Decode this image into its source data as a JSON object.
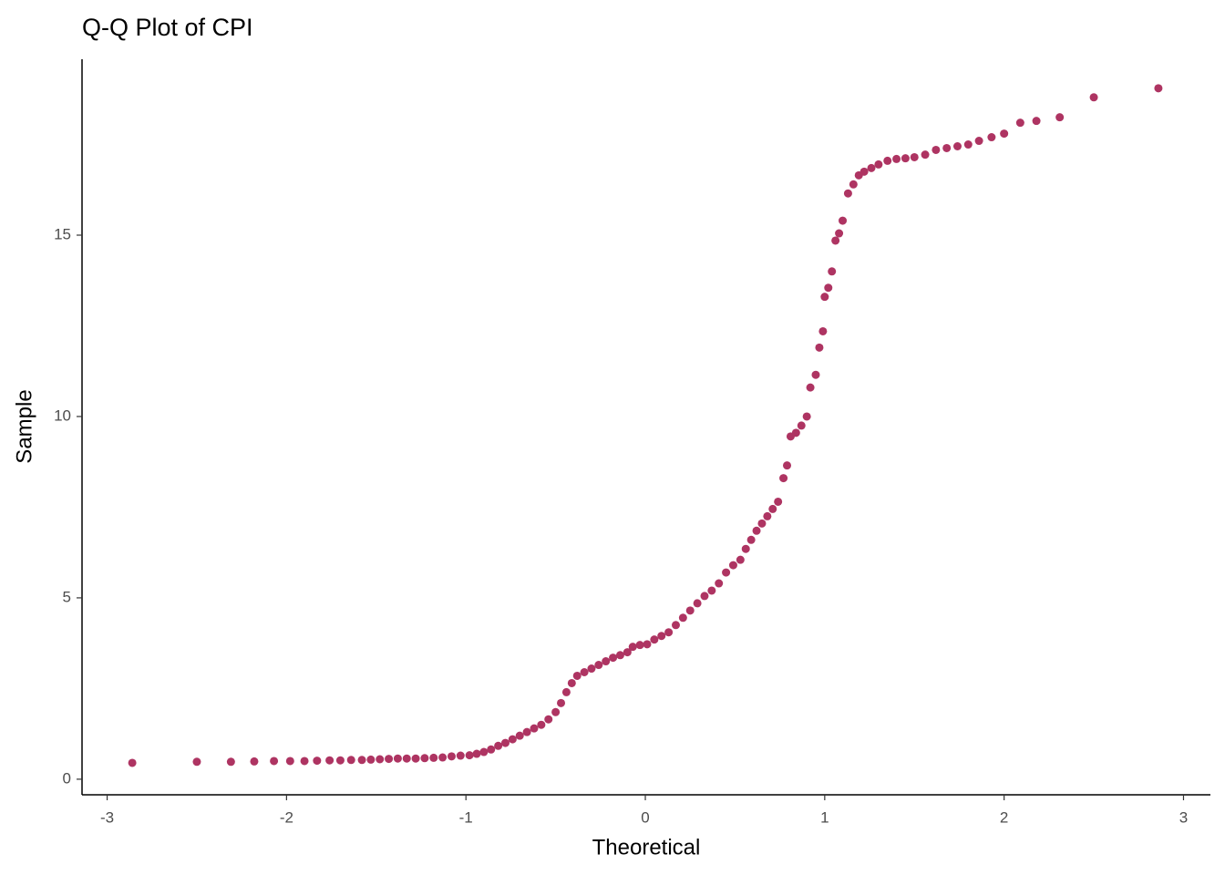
{
  "chart_data": {
    "type": "scatter",
    "title": "Q-Q Plot of CPI",
    "x_label": "Theoretical",
    "y_label": "Sample",
    "color": "#ae3462",
    "x": [
      -2.86,
      -2.5,
      -2.31,
      -2.18,
      -2.07,
      -1.98,
      -1.9,
      -1.83,
      -1.76,
      -1.7,
      -1.64,
      -1.58,
      -1.53,
      -1.48,
      -1.43,
      -1.38,
      -1.33,
      -1.28,
      -1.23,
      -1.18,
      -1.13,
      -1.08,
      -1.03,
      -0.98,
      -0.94,
      -0.9,
      -0.86,
      -0.82,
      -0.78,
      -0.74,
      -0.7,
      -0.66,
      -0.62,
      -0.58,
      -0.54,
      -0.5,
      -0.47,
      -0.44,
      -0.41,
      -0.38,
      -0.34,
      -0.3,
      -0.26,
      -0.22,
      -0.18,
      -0.14,
      -0.1,
      -0.07,
      -0.03,
      0.01,
      0.05,
      0.09,
      0.13,
      0.17,
      0.21,
      0.25,
      0.29,
      0.33,
      0.37,
      0.41,
      0.45,
      0.49,
      0.53,
      0.56,
      0.59,
      0.62,
      0.65,
      0.68,
      0.71,
      0.74,
      0.77,
      0.79,
      0.81,
      0.84,
      0.87,
      0.9,
      0.92,
      0.95,
      0.97,
      0.99,
      1.0,
      1.02,
      1.04,
      1.06,
      1.08,
      1.1,
      1.13,
      1.16,
      1.19,
      1.22,
      1.26,
      1.3,
      1.35,
      1.4,
      1.45,
      1.5,
      1.56,
      1.62,
      1.68,
      1.74,
      1.8,
      1.86,
      1.93,
      2.0,
      2.09,
      2.18,
      2.31,
      2.5,
      2.86
    ],
    "values": [
      0.45,
      0.48,
      0.48,
      0.49,
      0.5,
      0.5,
      0.5,
      0.51,
      0.52,
      0.52,
      0.53,
      0.53,
      0.54,
      0.55,
      0.56,
      0.57,
      0.57,
      0.57,
      0.58,
      0.59,
      0.6,
      0.63,
      0.65,
      0.66,
      0.7,
      0.75,
      0.82,
      0.92,
      1.0,
      1.1,
      1.2,
      1.3,
      1.4,
      1.5,
      1.65,
      1.85,
      2.1,
      2.4,
      2.65,
      2.85,
      2.95,
      3.05,
      3.15,
      3.25,
      3.35,
      3.42,
      3.5,
      3.65,
      3.7,
      3.72,
      3.85,
      3.95,
      4.05,
      4.25,
      4.45,
      4.65,
      4.85,
      5.05,
      5.2,
      5.4,
      5.7,
      5.9,
      6.05,
      6.35,
      6.6,
      6.85,
      7.05,
      7.25,
      7.45,
      7.65,
      8.3,
      8.65,
      9.45,
      9.55,
      9.75,
      10.0,
      10.8,
      11.15,
      11.9,
      12.35,
      13.3,
      13.55,
      14.0,
      14.85,
      15.05,
      15.4,
      16.15,
      16.4,
      16.65,
      16.75,
      16.85,
      16.95,
      17.05,
      17.1,
      17.12,
      17.15,
      17.22,
      17.35,
      17.4,
      17.45,
      17.5,
      17.6,
      17.7,
      17.8,
      18.1,
      18.15,
      18.25,
      18.8,
      19.05
    ],
    "xlim": [
      -3.14,
      3.15
    ],
    "ylim": [
      -0.43,
      19.85
    ],
    "xticks": [
      -3,
      -2,
      -1,
      0,
      1,
      2,
      3
    ],
    "yticks": [
      0,
      5,
      10,
      15
    ]
  }
}
